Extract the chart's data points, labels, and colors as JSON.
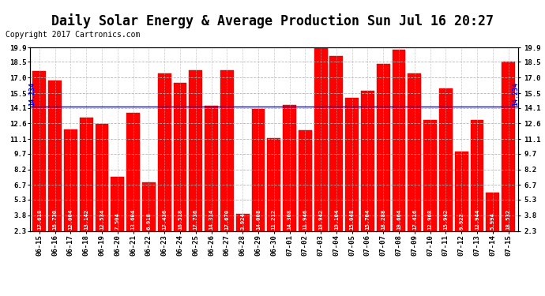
{
  "title": "Daily Solar Energy & Average Production Sun Jul 16 20:27",
  "copyright": "Copyright 2017 Cartronics.com",
  "categories": [
    "06-15",
    "06-16",
    "06-17",
    "06-18",
    "06-19",
    "06-20",
    "06-21",
    "06-22",
    "06-23",
    "06-24",
    "06-25",
    "06-26",
    "06-27",
    "06-28",
    "06-29",
    "06-30",
    "07-01",
    "07-02",
    "07-03",
    "07-04",
    "07-05",
    "07-06",
    "07-07",
    "07-08",
    "07-09",
    "07-10",
    "07-11",
    "07-12",
    "07-13",
    "07-14",
    "07-15"
  ],
  "values": [
    17.618,
    16.73,
    12.004,
    13.142,
    12.534,
    7.504,
    13.604,
    6.918,
    17.436,
    16.518,
    17.736,
    14.314,
    17.67,
    3.924,
    14.008,
    11.212,
    14.368,
    11.946,
    19.942,
    19.104,
    15.048,
    15.704,
    18.288,
    19.664,
    17.416,
    12.968,
    15.942,
    9.922,
    12.944,
    5.994,
    18.532
  ],
  "average_line": 14.234,
  "bar_color": "#ff0000",
  "average_line_color": "#0000ff",
  "bg_color": "#ffffff",
  "grid_color": "#b0b0b0",
  "yticks": [
    2.3,
    3.8,
    5.3,
    6.7,
    8.2,
    9.7,
    11.1,
    12.6,
    14.1,
    15.5,
    17.0,
    18.5,
    19.9
  ],
  "ymin": 2.3,
  "ymax": 19.9,
  "bar_text_color": "#ffffff",
  "title_fontsize": 12,
  "copyright_fontsize": 7,
  "tick_fontsize": 6.5,
  "value_fontsize": 5.2,
  "legend_avg_color": "#0000cc",
  "legend_daily_color": "#ff0000",
  "legend_text_color": "#ffffff",
  "avg_label_color": "#0000ff",
  "avg_label_value": "14.234",
  "outer_border_color": "#000000"
}
